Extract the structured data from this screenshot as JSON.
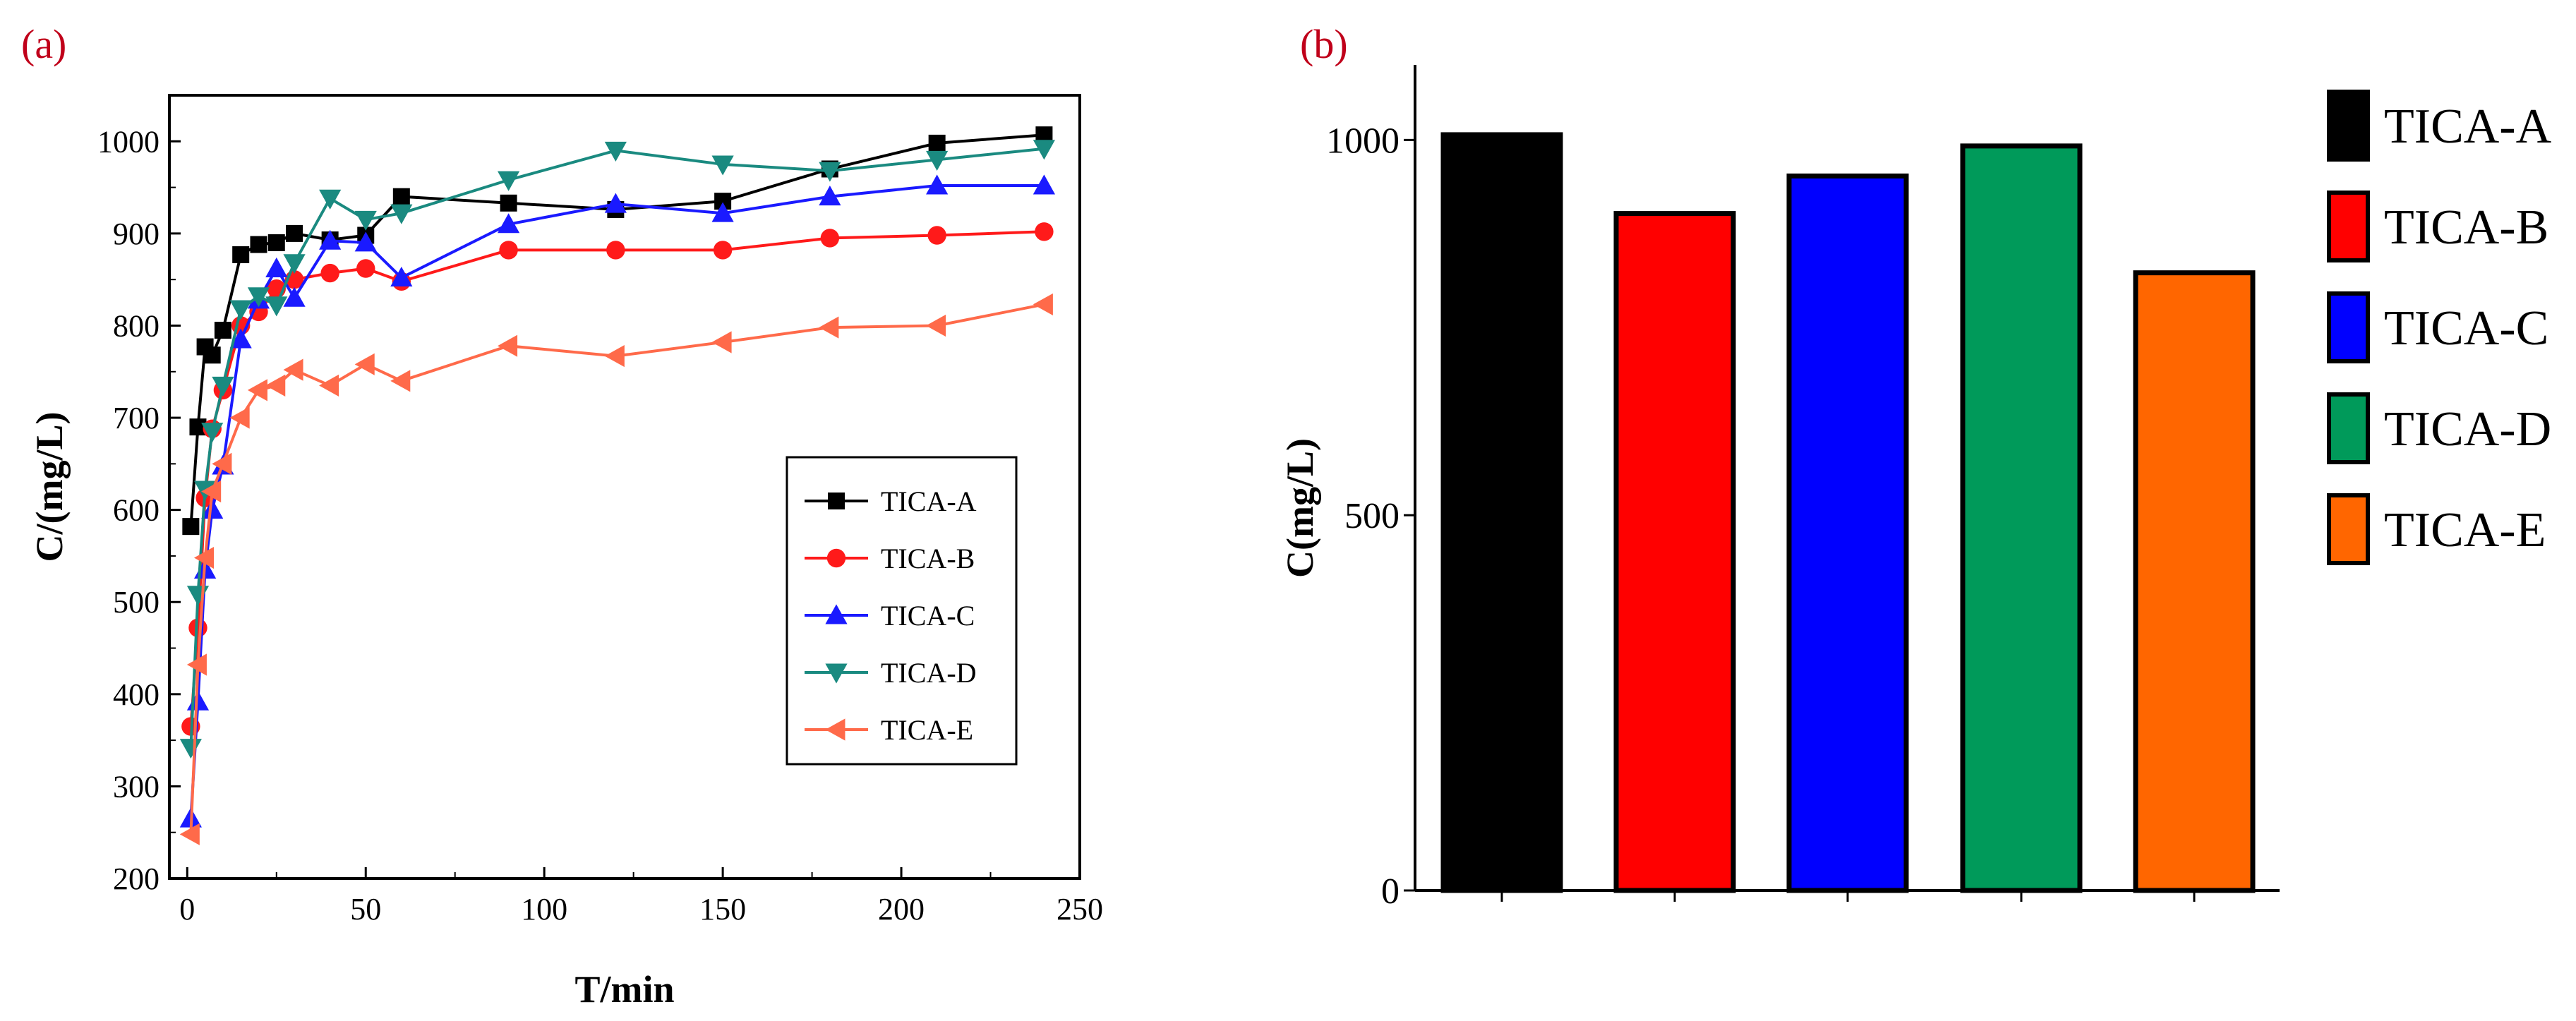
{
  "panel_a": {
    "label": "(a)",
    "chart_data": {
      "type": "line",
      "xlabel": "T/min",
      "ylabel": "C/(mg/L)",
      "xlim": [
        -5,
        250
      ],
      "ylim": [
        200,
        1050
      ],
      "xticks": [
        0,
        50,
        100,
        150,
        200,
        250
      ],
      "yticks": [
        200,
        300,
        400,
        500,
        600,
        700,
        800,
        900,
        1000
      ],
      "legend_position": "lower-right",
      "series": [
        {
          "name": "TICA-A",
          "color": "#000000",
          "marker": "square",
          "x": [
            1,
            3,
            5,
            7,
            10,
            15,
            20,
            25,
            30,
            40,
            50,
            60,
            90,
            120,
            150,
            180,
            210,
            240
          ],
          "y": [
            582,
            690,
            777,
            768,
            795,
            877,
            888,
            890,
            900,
            893,
            898,
            940,
            933,
            926,
            935,
            970,
            998,
            1007
          ]
        },
        {
          "name": "TICA-B",
          "color": "#ff1a1a",
          "marker": "circle",
          "x": [
            1,
            3,
            5,
            7,
            10,
            15,
            20,
            25,
            30,
            40,
            50,
            60,
            90,
            120,
            150,
            180,
            210,
            240
          ],
          "y": [
            365,
            472,
            613,
            688,
            730,
            800,
            815,
            840,
            850,
            857,
            862,
            848,
            882,
            882,
            882,
            895,
            898,
            902
          ]
        },
        {
          "name": "TICA-C",
          "color": "#1a1aff",
          "marker": "triangle-up",
          "x": [
            1,
            3,
            5,
            7,
            10,
            15,
            20,
            25,
            30,
            40,
            50,
            60,
            90,
            120,
            150,
            180,
            210,
            240
          ],
          "y": [
            265,
            392,
            535,
            600,
            648,
            785,
            828,
            862,
            830,
            892,
            890,
            852,
            910,
            932,
            922,
            940,
            952,
            952
          ]
        },
        {
          "name": "TICA-D",
          "color": "#1a8a80",
          "marker": "triangle-down",
          "x": [
            1,
            3,
            5,
            7,
            10,
            15,
            20,
            25,
            30,
            40,
            50,
            60,
            90,
            120,
            150,
            180,
            210,
            240
          ],
          "y": [
            342,
            508,
            622,
            685,
            735,
            818,
            832,
            822,
            868,
            938,
            915,
            922,
            958,
            990,
            975,
            968,
            980,
            992
          ]
        },
        {
          "name": "TICA-E",
          "color": "#ff6a4a",
          "marker": "triangle-left",
          "x": [
            1,
            3,
            5,
            7,
            10,
            15,
            20,
            25,
            30,
            40,
            50,
            60,
            90,
            120,
            150,
            180,
            210,
            240
          ],
          "y": [
            248,
            432,
            548,
            620,
            650,
            700,
            730,
            735,
            752,
            735,
            758,
            740,
            778,
            767,
            782,
            798,
            800,
            823
          ]
        }
      ]
    }
  },
  "panel_b": {
    "label": "(b)",
    "chart_data": {
      "type": "bar",
      "ylabel": "C(mg/L)",
      "ylim": [
        0,
        1100
      ],
      "yticks": [
        0,
        500,
        1000
      ],
      "legend_position": "right",
      "categories": [
        "TICA-A",
        "TICA-B",
        "TICA-C",
        "TICA-D",
        "TICA-E"
      ],
      "values": [
        1007,
        902,
        952,
        992,
        823
      ],
      "colors": [
        "#000000",
        "#ff0000",
        "#0000ff",
        "#009a5a",
        "#ff6600"
      ]
    }
  }
}
